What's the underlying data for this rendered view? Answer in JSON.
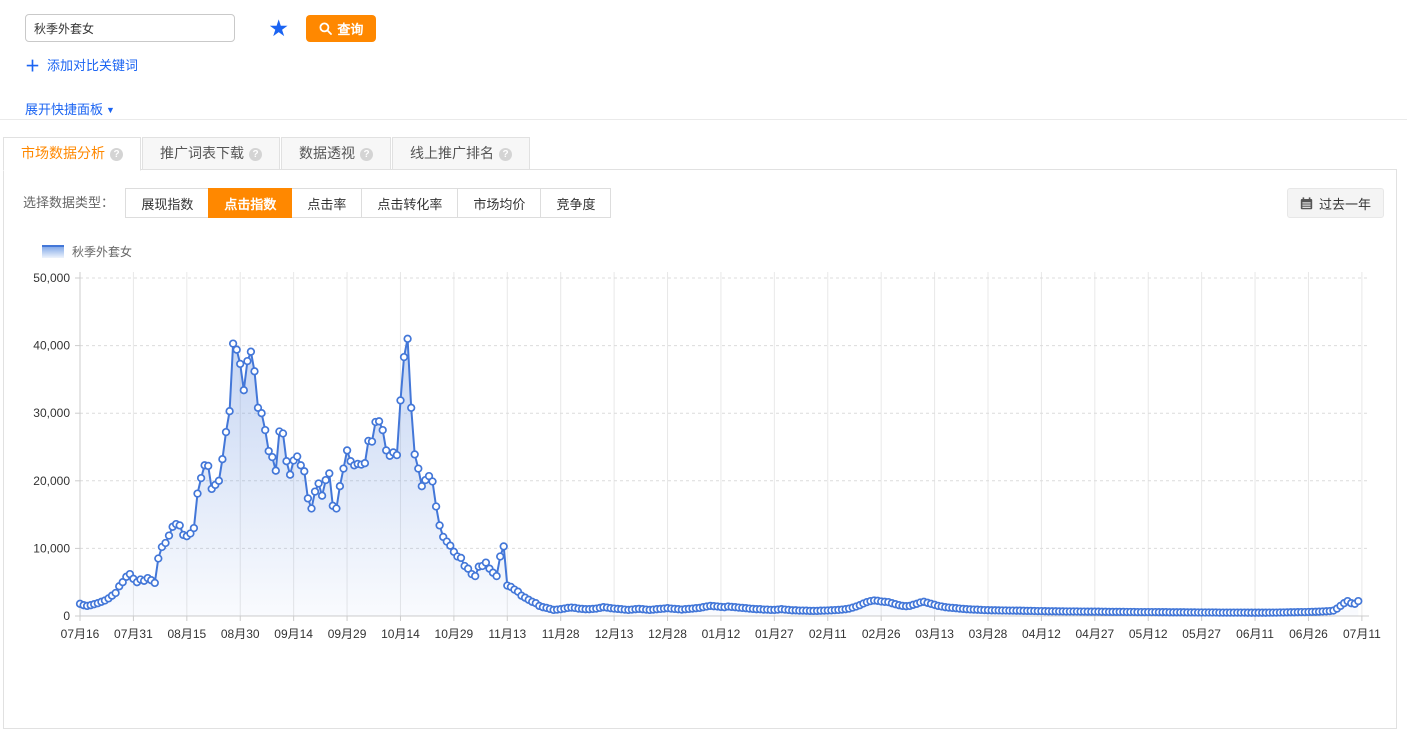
{
  "search": {
    "keyword": "秋季外套女",
    "query_button": "查询",
    "add_compare": "添加对比关键词",
    "expand_panel": "展开快捷面板"
  },
  "tabs": [
    {
      "label": "市场数据分析",
      "active": true
    },
    {
      "label": "推广词表下载",
      "active": false
    },
    {
      "label": "数据透视",
      "active": false
    },
    {
      "label": "线上推广排名",
      "active": false
    }
  ],
  "toolbar": {
    "data_type_label": "选择数据类型：",
    "data_types": [
      "展现指数",
      "点击指数",
      "点击率",
      "点击转化率",
      "市场均价",
      "竞争度"
    ],
    "active_data_type": "点击指数",
    "date_range": "过去一年"
  },
  "legend": {
    "series_name": "秋季外套女"
  },
  "colors": {
    "accent_orange": "#ff8800",
    "link_blue": "#1b64f2",
    "line_blue": "#4377d8",
    "grid_gray": "#e8e8e8",
    "axis_gray": "#cccccc"
  },
  "chart_data": {
    "type": "area",
    "title": "",
    "xlabel": "",
    "ylabel": "",
    "ylim": [
      0,
      50000
    ],
    "y_tick_labels": [
      "0",
      "10,000",
      "20,000",
      "30,000",
      "40,000",
      "50,000"
    ],
    "x_tick_labels": [
      "07月16",
      "07月31",
      "08月15",
      "08月30",
      "09月14",
      "09月29",
      "10月14",
      "10月29",
      "11月13",
      "11月28",
      "12月13",
      "12月28",
      "01月12",
      "01月27",
      "02月11",
      "02月26",
      "03月13",
      "03月28",
      "04月12",
      "04月27",
      "05月12",
      "05月27",
      "06月11",
      "06月26",
      "07月11"
    ],
    "x_tick_interval_days": 15,
    "grid": true,
    "legend_position": "top-left",
    "series": [
      {
        "name": "秋季外套女",
        "values": [
          1800,
          1600,
          1500,
          1600,
          1750,
          1900,
          2100,
          2300,
          2600,
          3000,
          3400,
          4400,
          5000,
          5800,
          6200,
          5500,
          5000,
          5400,
          5200,
          5600,
          5300,
          4900,
          8500,
          10200,
          10800,
          11900,
          13200,
          13600,
          13400,
          12000,
          11800,
          12200,
          13000,
          18100,
          20400,
          22300,
          22200,
          18800,
          19400,
          20000,
          23200,
          27200,
          30300,
          40300,
          39400,
          37300,
          33400,
          37700,
          39100,
          36200,
          30800,
          30000,
          27500,
          24400,
          23500,
          21500,
          27300,
          27000,
          22900,
          20900,
          23000,
          23600,
          22300,
          21400,
          17400,
          15900,
          18400,
          19600,
          17800,
          20100,
          21100,
          16300,
          15900,
          19200,
          21800,
          24500,
          22900,
          22300,
          22500,
          22400,
          22600,
          25900,
          25800,
          28700,
          28800,
          27500,
          24500,
          23700,
          24200,
          23800,
          31900,
          38300,
          41000,
          30800,
          23900,
          21800,
          19200,
          20100,
          20700,
          19900,
          16200,
          13400,
          11700,
          11000,
          10400,
          9500,
          8800,
          8600,
          7400,
          7000,
          6200,
          5900,
          7300,
          7400,
          7900,
          7000,
          6400,
          5900,
          8800,
          10300,
          4500,
          4300,
          3900,
          3600,
          3000,
          2700,
          2400,
          2100,
          1900,
          1500,
          1300,
          1200,
          1050,
          900,
          950,
          1000,
          1100,
          1200,
          1250,
          1200,
          1100,
          1050,
          1000,
          1000,
          1050,
          1100,
          1200,
          1300,
          1250,
          1150,
          1100,
          1050,
          1000,
          950,
          900,
          950,
          1000,
          1050,
          1000,
          950,
          900,
          950,
          1000,
          1050,
          1100,
          1150,
          1100,
          1050,
          1000,
          950,
          1000,
          1050,
          1100,
          1150,
          1200,
          1300,
          1400,
          1500,
          1450,
          1400,
          1350,
          1300,
          1400,
          1350,
          1300,
          1250,
          1200,
          1150,
          1100,
          1050,
          1000,
          1000,
          950,
          950,
          900,
          900,
          950,
          1000,
          950,
          900,
          850,
          850,
          800,
          800,
          780,
          760,
          750,
          760,
          780,
          800,
          820,
          850,
          880,
          900,
          950,
          1000,
          1100,
          1250,
          1400,
          1600,
          1850,
          2050,
          2200,
          2300,
          2250,
          2150,
          2100,
          2050,
          1900,
          1750,
          1600,
          1500,
          1450,
          1500,
          1650,
          1800,
          2000,
          2100,
          1950,
          1800,
          1650,
          1500,
          1400,
          1300,
          1250,
          1200,
          1150,
          1100,
          1050,
          1000,
          980,
          950,
          930,
          900,
          880,
          860,
          850,
          840,
          830,
          820,
          810,
          800,
          800,
          790,
          780,
          770,
          760,
          750,
          740,
          730,
          720,
          710,
          700,
          700,
          690,
          680,
          680,
          670,
          670,
          660,
          660,
          650,
          650,
          640,
          640,
          630,
          630,
          620,
          620,
          610,
          610,
          600,
          600,
          600,
          590,
          590,
          590,
          580,
          580,
          580,
          570,
          570,
          570,
          560,
          560,
          555,
          550,
          550,
          545,
          540,
          540,
          535,
          530,
          530,
          525,
          520,
          520,
          520,
          515,
          515,
          510,
          510,
          510,
          505,
          505,
          500,
          500,
          500,
          495,
          495,
          490,
          490,
          490,
          495,
          500,
          505,
          510,
          515,
          520,
          530,
          540,
          550,
          560,
          570,
          580,
          590,
          600,
          620,
          640,
          660,
          690,
          720,
          800,
          1100,
          1500,
          1900,
          2200,
          1900,
          1800,
          2200
        ]
      }
    ]
  }
}
